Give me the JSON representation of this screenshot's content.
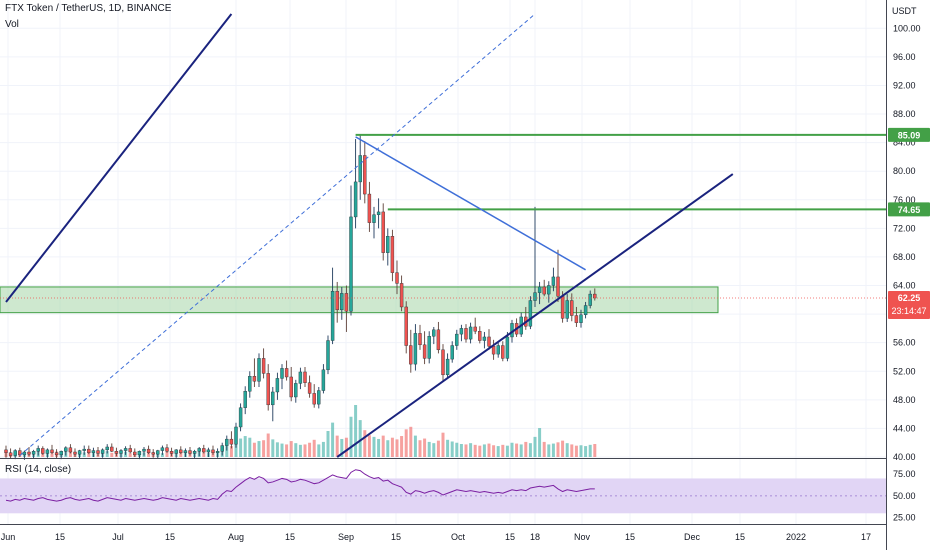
{
  "header": {
    "title": "FTX Token / TetherUS, 1D, BINANCE",
    "vol_label": "Vol",
    "rsi_label": "RSI (14, close)"
  },
  "axis": {
    "currency": "USDT",
    "price_ticks": [
      "100.00",
      "96.00",
      "92.00",
      "88.00",
      "84.00",
      "80.00",
      "76.00",
      "72.00",
      "68.00",
      "64.00",
      "60.00",
      "56.00",
      "52.00",
      "48.00",
      "44.00",
      "40.00"
    ],
    "rsi_ticks": [
      "75.00",
      "50.00",
      "25.00"
    ],
    "x_ticks": [
      "Jun",
      "15",
      "Jul",
      "15",
      "Aug",
      "15",
      "Sep",
      "15",
      "Oct",
      "15",
      "18",
      "Nov",
      "15",
      "Dec",
      "15",
      "2022",
      "17"
    ]
  },
  "tags": {
    "level_high": "85.09",
    "level_mid": "74.65",
    "last_price": "62.25",
    "countdown": "23:14:47"
  },
  "colors": {
    "up": "#26a69a",
    "down": "#ef5350",
    "up_wick": "#1e3a5c",
    "level_line": "#43a047",
    "trend_navy": "#1a237e",
    "trend_blue": "#3f6fd8",
    "zone_fill": "#a5d6a7",
    "rsi_band": "#e1d5f5",
    "rsi_line": "#7b1fa2",
    "price_tag": "#ef5350"
  },
  "chart_data": {
    "type": "candlestick",
    "symbol": "FTX Token / TetherUS",
    "interval": "1D",
    "exchange": "BINANCE",
    "y_range": [
      40,
      102
    ],
    "rsi_range": [
      20,
      82
    ],
    "horizontal_levels": [
      85.09,
      74.65
    ],
    "zone": [
      60.2,
      63.8
    ],
    "last_price": 62.25,
    "candles_ohlc": [
      [
        41.0,
        41.6,
        39.9,
        40.6
      ],
      [
        40.6,
        41.2,
        39.8,
        40.2
      ],
      [
        40.2,
        41.1,
        39.7,
        40.9
      ],
      [
        40.9,
        41.3,
        40.0,
        40.3
      ],
      [
        40.3,
        40.9,
        39.6,
        40.7
      ],
      [
        40.7,
        41.4,
        40.1,
        40.4
      ],
      [
        40.4,
        41.0,
        39.8,
        40.8
      ],
      [
        40.8,
        41.6,
        40.2,
        41.2
      ],
      [
        41.2,
        41.5,
        40.3,
        40.5
      ],
      [
        40.5,
        41.2,
        39.9,
        41.0
      ],
      [
        41.0,
        41.7,
        40.4,
        40.6
      ],
      [
        40.6,
        41.1,
        39.8,
        40.3
      ],
      [
        40.3,
        40.9,
        39.7,
        40.8
      ],
      [
        40.8,
        41.5,
        40.2,
        41.3
      ],
      [
        41.3,
        41.8,
        40.5,
        40.7
      ],
      [
        40.7,
        41.2,
        40.0,
        40.4
      ],
      [
        40.4,
        41.0,
        39.8,
        40.9
      ],
      [
        40.9,
        41.6,
        40.3,
        41.1
      ],
      [
        41.1,
        41.6,
        40.4,
        40.6
      ],
      [
        40.6,
        41.3,
        40.0,
        40.9
      ],
      [
        40.9,
        41.4,
        40.1,
        40.5
      ],
      [
        40.5,
        41.2,
        39.9,
        41.0
      ],
      [
        41.0,
        41.8,
        40.5,
        41.4
      ],
      [
        41.4,
        41.9,
        40.7,
        40.8
      ],
      [
        40.8,
        41.3,
        40.1,
        40.5
      ],
      [
        40.5,
        41.1,
        39.9,
        40.9
      ],
      [
        40.9,
        41.5,
        40.3,
        41.2
      ],
      [
        41.2,
        41.7,
        40.5,
        40.7
      ],
      [
        40.7,
        41.2,
        40.0,
        40.3
      ],
      [
        40.3,
        40.9,
        39.7,
        40.8
      ],
      [
        40.8,
        41.4,
        40.2,
        41.1
      ],
      [
        41.1,
        41.6,
        40.4,
        40.6
      ],
      [
        40.6,
        41.1,
        39.9,
        40.4
      ],
      [
        40.4,
        41.0,
        39.8,
        40.9
      ],
      [
        40.9,
        41.6,
        40.3,
        41.3
      ],
      [
        41.3,
        41.8,
        40.6,
        40.8
      ],
      [
        40.8,
        41.3,
        40.1,
        40.5
      ],
      [
        40.5,
        41.1,
        39.9,
        41.0
      ],
      [
        41.0,
        41.5,
        40.4,
        40.6
      ],
      [
        40.6,
        41.2,
        40.0,
        40.9
      ],
      [
        40.9,
        41.4,
        40.2,
        40.5
      ],
      [
        40.5,
        41.0,
        39.8,
        40.8
      ],
      [
        40.8,
        41.4,
        40.1,
        41.2
      ],
      [
        41.2,
        41.7,
        40.5,
        40.7
      ],
      [
        40.7,
        41.3,
        40.0,
        41.0
      ],
      [
        41.0,
        41.6,
        40.3,
        40.6
      ],
      [
        40.6,
        41.2,
        39.9,
        40.8
      ],
      [
        40.8,
        42.0,
        40.2,
        41.6
      ],
      [
        41.6,
        43.0,
        40.9,
        42.5
      ],
      [
        42.5,
        43.6,
        41.2,
        41.8
      ],
      [
        41.8,
        44.8,
        41.3,
        44.2
      ],
      [
        44.2,
        47.5,
        43.6,
        46.9
      ],
      [
        46.9,
        49.9,
        46.0,
        49.2
      ],
      [
        49.2,
        52.0,
        48.3,
        51.3
      ],
      [
        51.3,
        53.8,
        49.8,
        50.6
      ],
      [
        50.6,
        54.5,
        49.8,
        53.8
      ],
      [
        53.8,
        55.2,
        51.0,
        51.7
      ],
      [
        51.7,
        53.0,
        46.5,
        47.3
      ],
      [
        47.3,
        49.8,
        45.0,
        49.1
      ],
      [
        49.1,
        51.8,
        48.0,
        51.0
      ],
      [
        51.0,
        53.0,
        49.5,
        52.4
      ],
      [
        52.4,
        53.5,
        50.7,
        51.2
      ],
      [
        51.2,
        52.6,
        47.8,
        48.4
      ],
      [
        48.4,
        50.8,
        47.6,
        50.3
      ],
      [
        50.3,
        52.5,
        49.5,
        51.9
      ],
      [
        51.9,
        52.6,
        49.8,
        50.4
      ],
      [
        50.4,
        51.4,
        48.3,
        48.9
      ],
      [
        48.9,
        50.2,
        46.9,
        47.4
      ],
      [
        47.4,
        49.8,
        46.8,
        49.3
      ],
      [
        49.3,
        53.0,
        48.9,
        52.2
      ],
      [
        52.2,
        57.0,
        51.6,
        56.3
      ],
      [
        56.3,
        66.5,
        55.8,
        63.2
      ],
      [
        63.2,
        64.5,
        58.8,
        60.6
      ],
      [
        60.6,
        63.8,
        59.2,
        62.9
      ],
      [
        62.9,
        64.0,
        57.5,
        60.4
      ],
      [
        60.4,
        78.0,
        59.8,
        73.6
      ],
      [
        73.6,
        84.5,
        72.0,
        78.5
      ],
      [
        78.5,
        85.0,
        76.0,
        82.2
      ],
      [
        82.2,
        84.2,
        75.5,
        76.8
      ],
      [
        76.8,
        78.5,
        71.5,
        72.8
      ],
      [
        72.8,
        75.0,
        70.6,
        73.9
      ],
      [
        73.9,
        76.2,
        72.0,
        74.3
      ],
      [
        74.3,
        75.5,
        67.5,
        68.6
      ],
      [
        68.6,
        72.0,
        66.8,
        70.9
      ],
      [
        70.9,
        71.8,
        64.6,
        65.8
      ],
      [
        65.8,
        67.5,
        62.8,
        64.3
      ],
      [
        64.3,
        65.4,
        60.4,
        61.0
      ],
      [
        61.0,
        61.8,
        54.5,
        55.6
      ],
      [
        55.6,
        57.8,
        51.8,
        53.0
      ],
      [
        53.0,
        58.6,
        52.1,
        57.3
      ],
      [
        57.3,
        58.5,
        55.0,
        55.7
      ],
      [
        55.7,
        57.6,
        53.0,
        53.8
      ],
      [
        53.8,
        57.6,
        53.1,
        56.9
      ],
      [
        56.9,
        58.2,
        55.8,
        57.8
      ],
      [
        57.8,
        58.9,
        54.5,
        55.0
      ],
      [
        55.0,
        55.8,
        50.6,
        51.5
      ],
      [
        51.5,
        54.5,
        51.0,
        53.7
      ],
      [
        53.7,
        56.2,
        53.2,
        55.6
      ],
      [
        55.6,
        57.8,
        55.0,
        57.2
      ],
      [
        57.2,
        58.5,
        56.2,
        58.0
      ],
      [
        58.0,
        58.6,
        56.0,
        56.5
      ],
      [
        56.5,
        58.8,
        55.9,
        58.2
      ],
      [
        58.2,
        59.5,
        57.2,
        57.6
      ],
      [
        57.6,
        58.3,
        55.9,
        56.3
      ],
      [
        56.3,
        57.5,
        55.2,
        56.8
      ],
      [
        56.8,
        57.9,
        55.0,
        55.5
      ],
      [
        55.5,
        56.4,
        53.6,
        54.4
      ],
      [
        54.4,
        56.0,
        53.9,
        55.6
      ],
      [
        55.6,
        56.2,
        53.4,
        53.8
      ],
      [
        53.8,
        57.5,
        53.4,
        56.8
      ],
      [
        56.8,
        59.2,
        56.0,
        58.7
      ],
      [
        58.7,
        59.4,
        56.8,
        57.2
      ],
      [
        57.2,
        60.2,
        56.8,
        59.6
      ],
      [
        59.6,
        61.0,
        57.8,
        58.3
      ],
      [
        58.3,
        62.5,
        57.9,
        61.9
      ],
      [
        61.9,
        75.0,
        61.0,
        63.0
      ],
      [
        63.0,
        64.5,
        61.4,
        63.8
      ],
      [
        63.8,
        64.8,
        62.5,
        62.8
      ],
      [
        62.8,
        64.6,
        61.6,
        64.0
      ],
      [
        64.0,
        66.5,
        63.2,
        65.2
      ],
      [
        65.2,
        69.0,
        61.7,
        62.5
      ],
      [
        62.5,
        63.2,
        58.8,
        59.4
      ],
      [
        59.4,
        62.8,
        58.9,
        61.9
      ],
      [
        61.9,
        62.9,
        59.0,
        59.8
      ],
      [
        59.8,
        61.0,
        58.2,
        58.8
      ],
      [
        58.8,
        60.6,
        58.1,
        59.9
      ],
      [
        59.9,
        61.7,
        59.4,
        61.2
      ],
      [
        61.2,
        63.3,
        60.8,
        62.8
      ],
      [
        62.8,
        63.6,
        61.9,
        62.25
      ]
    ],
    "volume": [
      1.3,
      0.9,
      1.1,
      1.4,
      0.8,
      1.0,
      1.2,
      1.5,
      1.7,
      1.1,
      0.9,
      1.3,
      1.0,
      1.4,
      1.8,
      1.2,
      0.9,
      1.1,
      1.3,
      1.0,
      0.8,
      1.2,
      1.4,
      1.0,
      1.1,
      1.6,
      1.3,
      0.9,
      1.0,
      1.2,
      1.1,
      1.5,
      1.2,
      1.0,
      0.9,
      1.3,
      1.4,
      1.1,
      1.2,
      1.0,
      0.9,
      1.2,
      1.3,
      1.1,
      1.0,
      1.4,
      1.2,
      2.0,
      3.1,
      2.6,
      3.6,
      4.4,
      5.0,
      4.6,
      3.4,
      3.8,
      4.0,
      5.6,
      4.2,
      3.5,
      3.2,
      3.0,
      3.8,
      3.3,
      2.9,
      3.0,
      3.4,
      4.1,
      3.0,
      3.6,
      6.2,
      8.2,
      5.1,
      4.3,
      4.6,
      9.6,
      12.4,
      8.8,
      6.4,
      5.2,
      4.8,
      4.3,
      5.1,
      4.0,
      4.6,
      4.2,
      5.0,
      6.6,
      7.2,
      5.1,
      4.0,
      4.4,
      3.6,
      3.3,
      3.9,
      5.8,
      4.1,
      3.7,
      3.4,
      3.1,
      3.0,
      3.3,
      2.9,
      2.7,
      3.0,
      3.2,
      2.8,
      2.6,
      2.9,
      2.7,
      3.4,
      3.2,
      3.0,
      3.6,
      3.3,
      4.8,
      6.9,
      3.6,
      3.0,
      3.2,
      3.5,
      3.9,
      3.3,
      3.0,
      2.7,
      2.8,
      2.6,
      2.9,
      3.1
    ],
    "rsi": [
      45,
      44,
      46,
      45,
      47,
      46,
      45,
      47,
      48,
      46,
      45,
      44,
      45,
      47,
      48,
      46,
      45,
      46,
      47,
      45,
      44,
      46,
      48,
      47,
      46,
      45,
      47,
      46,
      45,
      46,
      47,
      46,
      45,
      46,
      48,
      47,
      46,
      45,
      47,
      46,
      45,
      46,
      47,
      46,
      45,
      47,
      46,
      52,
      56,
      55,
      60,
      64,
      68,
      71,
      69,
      72,
      70,
      65,
      66,
      68,
      70,
      69,
      66,
      67,
      69,
      68,
      66,
      64,
      65,
      68,
      71,
      74,
      72,
      71,
      70,
      77,
      80,
      79,
      75,
      72,
      70,
      71,
      67,
      68,
      64,
      62,
      60,
      54,
      52,
      56,
      55,
      53,
      55,
      56,
      54,
      51,
      53,
      55,
      57,
      56,
      55,
      56,
      55,
      54,
      55,
      54,
      53,
      54,
      53,
      55,
      57,
      56,
      57,
      56,
      59,
      60,
      61,
      60,
      61,
      62,
      58,
      55,
      57,
      56,
      55,
      56,
      57,
      58,
      58
    ],
    "drawn_lines": [
      {
        "name": "outer-channel-line",
        "from": [
          0,
          61.7
        ],
        "to": [
          49,
          102
        ]
      },
      {
        "name": "mid-channel-dashed-line",
        "from": [
          3,
          40.2
        ],
        "to": [
          115,
          102
        ]
      },
      {
        "name": "descending-trendline",
        "from": [
          76,
          84.8
        ],
        "to": [
          126,
          66.2
        ]
      },
      {
        "name": "ascending-trendline",
        "from": [
          72,
          40.0
        ],
        "to": [
          158,
          79.6
        ]
      }
    ]
  }
}
